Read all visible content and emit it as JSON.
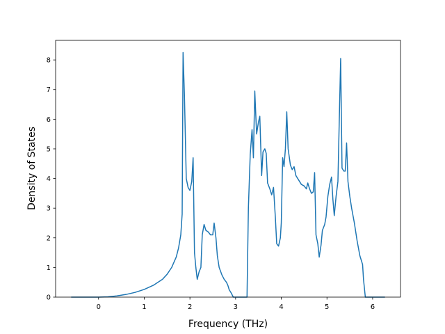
{
  "chart_data": {
    "type": "line",
    "xlabel": "Frequency (THz)",
    "ylabel": "Density of States",
    "x": [
      -0.6,
      0,
      0.2,
      0.4,
      0.6,
      0.8,
      1.0,
      1.2,
      1.4,
      1.5,
      1.6,
      1.7,
      1.75,
      1.8,
      1.83,
      1.85,
      1.88,
      1.92,
      1.96,
      2.0,
      2.04,
      2.07,
      2.1,
      2.13,
      2.16,
      2.2,
      2.24,
      2.27,
      2.31,
      2.35,
      2.4,
      2.45,
      2.5,
      2.53,
      2.57,
      2.6,
      2.64,
      2.7,
      2.75,
      2.8,
      2.83,
      2.86,
      2.9,
      2.95,
      3.25,
      3.28,
      3.32,
      3.36,
      3.39,
      3.42,
      3.46,
      3.5,
      3.53,
      3.57,
      3.6,
      3.64,
      3.67,
      3.7,
      3.75,
      3.79,
      3.83,
      3.87,
      3.9,
      3.94,
      3.98,
      4.0,
      4.03,
      4.06,
      4.09,
      4.12,
      4.15,
      4.2,
      4.24,
      4.28,
      4.32,
      4.38,
      4.44,
      4.5,
      4.55,
      4.58,
      4.62,
      4.66,
      4.7,
      4.73,
      4.76,
      4.8,
      4.83,
      4.87,
      4.9,
      4.95,
      4.98,
      5.02,
      5.06,
      5.1,
      5.13,
      5.16,
      5.2,
      5.24,
      5.27,
      5.3,
      5.33,
      5.37,
      5.4,
      5.43,
      5.46,
      5.5,
      5.54,
      5.6,
      5.66,
      5.72,
      5.78,
      5.8,
      5.84,
      6.27
    ],
    "series": [
      {
        "color": "#1f77b4",
        "values": [
          0,
          0,
          0.01,
          0.04,
          0.09,
          0.16,
          0.26,
          0.4,
          0.6,
          0.77,
          1.0,
          1.35,
          1.65,
          2.1,
          2.8,
          8.25,
          6.8,
          4.0,
          3.7,
          3.6,
          3.9,
          4.7,
          1.5,
          1.0,
          0.6,
          0.85,
          1.0,
          2.1,
          2.45,
          2.25,
          2.2,
          2.1,
          2.1,
          2.5,
          2.0,
          1.4,
          1.0,
          0.75,
          0.6,
          0.5,
          0.4,
          0.25,
          0.15,
          0,
          0,
          3.0,
          4.8,
          5.65,
          4.7,
          6.95,
          5.5,
          5.9,
          6.1,
          4.1,
          4.9,
          5.0,
          4.85,
          3.85,
          3.65,
          3.45,
          3.7,
          2.7,
          1.8,
          1.72,
          2.0,
          2.5,
          4.7,
          4.4,
          5.0,
          6.25,
          5.0,
          4.45,
          4.3,
          4.4,
          4.1,
          3.95,
          3.8,
          3.75,
          3.65,
          3.85,
          3.65,
          3.5,
          3.55,
          4.2,
          2.1,
          1.8,
          1.35,
          1.75,
          2.25,
          2.45,
          2.7,
          3.4,
          3.8,
          4.05,
          3.3,
          2.75,
          3.4,
          3.9,
          6.0,
          8.05,
          4.35,
          4.25,
          4.25,
          5.2,
          3.9,
          3.4,
          3.0,
          2.5,
          1.9,
          1.4,
          1.1,
          0.6,
          0,
          0
        ]
      }
    ],
    "xlim": [
      -0.94,
      6.61
    ],
    "ylim": [
      0,
      8.66
    ],
    "xticks": [
      0,
      1,
      2,
      3,
      4,
      5,
      6
    ],
    "yticks": [
      0,
      1,
      2,
      3,
      4,
      5,
      6,
      7,
      8
    ]
  }
}
